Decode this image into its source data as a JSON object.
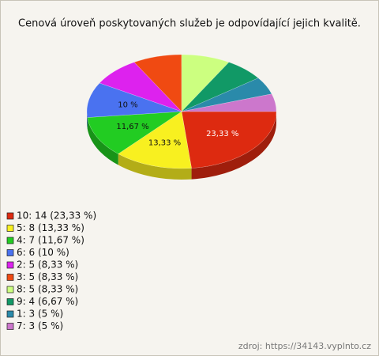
{
  "chart_data": {
    "type": "pie",
    "title": "Cenová úroveň poskytovaných služeb je odpovídající jejich kvalitě.",
    "categories": [
      "10: 14 (23,33 %)",
      "5: 8 (13,33 %)",
      "4: 7 (11,67 %)",
      "6: 6 (10 %)",
      "2: 5 (8,33 %)",
      "3: 5 (8,33 %)",
      "8: 5 (8,33 %)",
      "9: 4 (6,67 %)",
      "1: 3 (5 %)",
      "7: 3 (5 %)"
    ],
    "values": [
      23.33,
      13.33,
      11.67,
      10,
      8.33,
      8.33,
      8.33,
      6.67,
      5,
      5
    ],
    "value_labels": [
      "23,33 %",
      "13,33 %",
      "11,67 %",
      "10 %",
      null,
      null,
      null,
      null,
      null,
      null
    ],
    "colors": [
      "#dd2a10",
      "#f8f020",
      "#22cc22",
      "#4a72f0",
      "#dd22ee",
      "#f04a12",
      "#ccff80",
      "#119966",
      "#2a8aaa",
      "#cc77cc"
    ],
    "source": "zdroj: https://34143.vyplnto.cz"
  }
}
